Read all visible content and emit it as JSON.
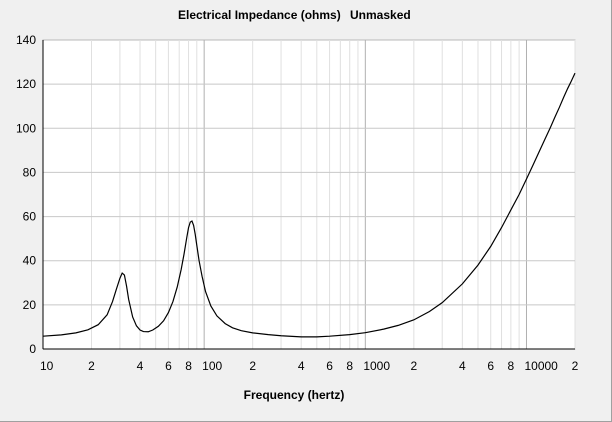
{
  "chart_data": {
    "type": "line",
    "title": "Electrical Impedance (ohms)",
    "subtitle": "Unmasked",
    "xlabel": "Frequency (hertz)",
    "ylabel": "",
    "x_scale": "log",
    "xlim": [
      10,
      20000
    ],
    "ylim": [
      0,
      140
    ],
    "grid": true,
    "y_ticks": [
      "0",
      "20",
      "40",
      "60",
      "80",
      "100",
      "120",
      "140"
    ],
    "x_tick_labels": [
      {
        "x": 10,
        "label": "10"
      },
      {
        "x": 20,
        "label": "2"
      },
      {
        "x": 40,
        "label": "4"
      },
      {
        "x": 60,
        "label": "6"
      },
      {
        "x": 80,
        "label": "8"
      },
      {
        "x": 100,
        "label": "100"
      },
      {
        "x": 200,
        "label": "2"
      },
      {
        "x": 400,
        "label": "4"
      },
      {
        "x": 600,
        "label": "6"
      },
      {
        "x": 800,
        "label": "8"
      },
      {
        "x": 1000,
        "label": "1000"
      },
      {
        "x": 2000,
        "label": "2"
      },
      {
        "x": 4000,
        "label": "4"
      },
      {
        "x": 6000,
        "label": "6"
      },
      {
        "x": 8000,
        "label": "8"
      },
      {
        "x": 10000,
        "label": "10000"
      },
      {
        "x": 20000,
        "label": "2"
      }
    ],
    "series": [
      {
        "color": "#000000",
        "x": [
          10,
          13,
          16,
          19,
          22,
          25,
          27,
          28.5,
          30,
          31,
          32,
          33,
          34,
          36,
          38,
          40,
          42,
          45,
          48,
          52,
          56,
          60,
          64,
          68,
          72,
          75,
          78,
          80,
          82,
          84,
          86,
          88,
          90,
          93,
          97,
          102,
          110,
          120,
          135,
          150,
          170,
          200,
          250,
          300,
          400,
          500,
          600,
          800,
          1000,
          1300,
          1600,
          2000,
          2500,
          3000,
          4000,
          5000,
          6000,
          7000,
          8000,
          9000,
          10000,
          11000,
          12000,
          13000,
          14000,
          15000,
          16000,
          17000,
          18000,
          19000,
          20000
        ],
        "y": [
          5.8,
          6.4,
          7.3,
          8.7,
          11.0,
          15.5,
          21.5,
          27.0,
          32.0,
          34.4,
          33.5,
          28.5,
          22.5,
          14.5,
          10.5,
          8.6,
          7.9,
          7.8,
          8.6,
          10.3,
          12.8,
          16.5,
          21.5,
          28.0,
          36.0,
          43.0,
          50.5,
          55.0,
          57.5,
          58.0,
          56.0,
          52.0,
          47.0,
          40.0,
          33.0,
          26.0,
          19.5,
          15.0,
          11.5,
          9.6,
          8.3,
          7.3,
          6.5,
          6.0,
          5.5,
          5.5,
          5.8,
          6.5,
          7.4,
          9.0,
          10.7,
          13.2,
          17.0,
          21.0,
          29.5,
          38.0,
          46.5,
          55.0,
          63.0,
          70.0,
          77.0,
          83.5,
          89.5,
          95.0,
          100.0,
          105.0,
          109.5,
          114.0,
          118.0,
          121.5,
          125.0
        ]
      }
    ]
  }
}
